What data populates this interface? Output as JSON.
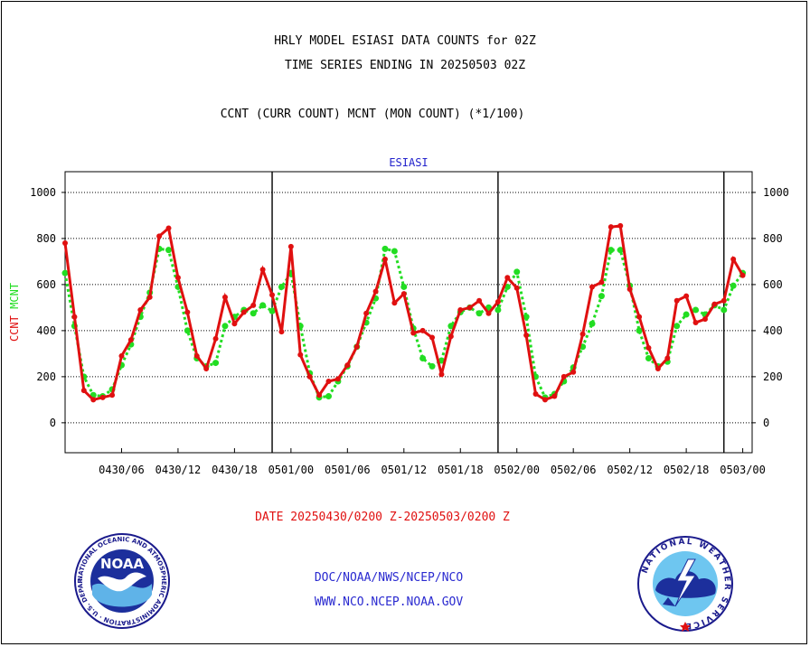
{
  "header": {
    "title_line1": "HRLY MODEL ESIASI DATA COUNTS for 02Z",
    "title_line2": "TIME SERIES ENDING IN 20250503 02Z",
    "subtitle": "CCNT (CURR COUNT) MCNT (MON COUNT) (*1/100)"
  },
  "footer": {
    "date_range": "DATE 20250430/0200 Z-20250503/0200 Z",
    "org_path": "DOC/NOAA/NWS/NCEP/NCO",
    "website": "WWW.NCO.NCEP.NOAA.GOV"
  },
  "logos": {
    "noaa_text": "NOAA",
    "noaa_ring": "NATIONAL OCEANIC AND ATMOSPHERIC ADMINISTRATION · U.S. DEPARTMENT OF COMMERCE ·",
    "nws_ring": "NATIONAL WEATHER SERVICE"
  },
  "colors": {
    "ccnt": "#e01010",
    "mcnt": "#22dd22",
    "date_text": "#e01010",
    "panel_label": "#2222cc",
    "credit_text": "#2a2ad0"
  },
  "chart_data": {
    "type": "line",
    "panel_label": "ESIASI",
    "ylabel_left": [
      {
        "text": "CCNT",
        "color": "#e01010"
      },
      {
        "text": "MCNT",
        "color": "#22dd22"
      }
    ],
    "ylim": [
      -130,
      1090
    ],
    "yticks": [
      0,
      200,
      400,
      600,
      800,
      1000
    ],
    "ytick_labels": [
      "0",
      "200",
      "400",
      "600",
      "800",
      "1000"
    ],
    "xlim": [
      0,
      73
    ],
    "xticks": [
      6,
      12,
      18,
      24,
      30,
      36,
      42,
      48,
      54,
      60,
      66,
      72
    ],
    "xtick_labels": [
      "0430/06",
      "0430/12",
      "0430/18",
      "0501/00",
      "0501/06",
      "0501/12",
      "0501/18",
      "0502/00",
      "0502/06",
      "0502/12",
      "0502/18",
      "0503/00"
    ],
    "day_boundaries": [
      22,
      46,
      70
    ],
    "grid": true,
    "series": [
      {
        "name": "CCNT",
        "values": [
          780,
          460,
          140,
          100,
          110,
          120,
          290,
          360,
          490,
          545,
          810,
          845,
          630,
          480,
          290,
          235,
          365,
          545,
          430,
          480,
          510,
          665,
          555,
          395,
          765,
          295,
          200,
          120,
          180,
          190,
          250,
          330,
          475,
          570,
          710,
          520,
          560,
          390,
          400,
          370,
          210,
          375,
          490,
          500,
          530,
          475,
          525,
          630,
          585,
          380,
          125,
          100,
          115,
          200,
          220,
          385,
          590,
          610,
          850,
          855,
          580,
          460,
          325,
          235,
          280,
          530,
          550,
          435,
          450,
          515,
          530,
          710,
          640
        ]
      },
      {
        "name": "MCNT",
        "values": [
          650,
          420,
          200,
          120,
          115,
          145,
          250,
          340,
          460,
          565,
          755,
          750,
          590,
          400,
          280,
          245,
          260,
          420,
          460,
          490,
          475,
          510,
          485,
          590,
          650,
          420,
          215,
          110,
          115,
          180,
          245,
          330,
          435,
          540,
          755,
          745,
          590,
          410,
          280,
          245,
          270,
          420,
          480,
          500,
          475,
          500,
          490,
          590,
          655,
          460,
          200,
          110,
          125,
          180,
          240,
          330,
          430,
          550,
          750,
          750,
          595,
          400,
          280,
          245,
          265,
          420,
          470,
          490,
          470,
          510,
          490,
          595,
          650
        ]
      }
    ]
  }
}
